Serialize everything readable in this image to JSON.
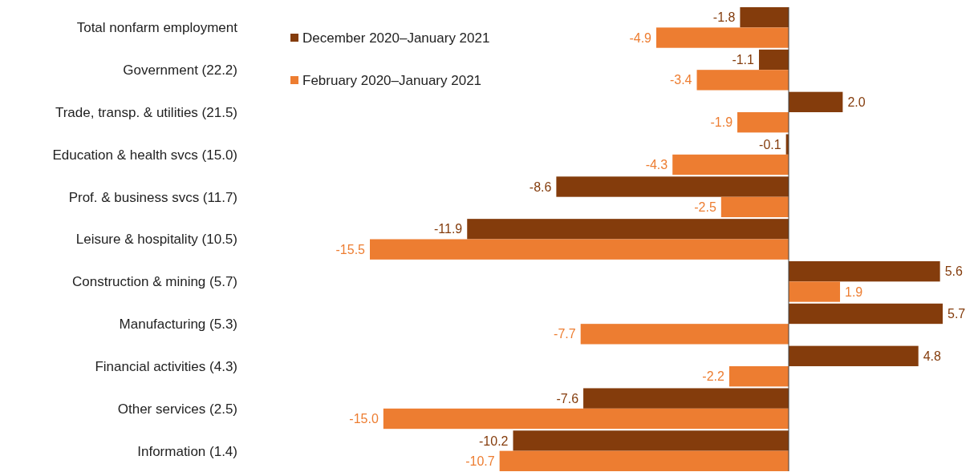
{
  "chart_data": {
    "type": "bar",
    "orientation": "horizontal",
    "legend": "top left",
    "categories": [
      "Total nonfarm employment",
      "Government (22.2)",
      "Trade, transp. & utilities (21.5)",
      "Education & health svcs (15.0)",
      "Prof. & business svcs (11.7)",
      "Leisure & hospitality (10.5)",
      "Construction & mining (5.7)",
      "Manufacturing (5.3)",
      "Financial activities (4.3)",
      "Other services (2.5)",
      "Information (1.4)"
    ],
    "series": [
      {
        "name": "December 2020–January 2021",
        "color": "#843c0c",
        "values": [
          -1.8,
          -1.1,
          2.0,
          -0.1,
          -8.6,
          -11.9,
          5.6,
          5.7,
          4.8,
          -7.6,
          -10.2
        ],
        "value_labels": [
          "-1.8",
          "-1.1",
          "2.0",
          "-0.1",
          "-8.6",
          "-11.9",
          "5.6",
          "5.7",
          "4.8",
          "-7.6",
          "-10.2"
        ]
      },
      {
        "name": "February 2020–January 2021",
        "color": "#ed7d31",
        "values": [
          -4.9,
          -3.4,
          -1.9,
          -4.3,
          -2.5,
          -15.5,
          1.9,
          -7.7,
          -2.2,
          -15.0,
          -10.7
        ],
        "value_labels": [
          "-4.9",
          "-3.4",
          "-1.9",
          "-4.3",
          "-2.5",
          "-15.5",
          "1.9",
          "-7.7",
          "-2.2",
          "-15.0",
          "-10.7"
        ]
      }
    ]
  }
}
